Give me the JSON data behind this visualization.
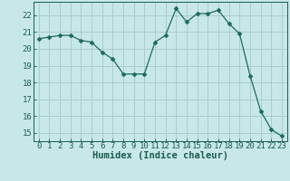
{
  "x": [
    0,
    1,
    2,
    3,
    4,
    5,
    6,
    7,
    8,
    9,
    10,
    11,
    12,
    13,
    14,
    15,
    16,
    17,
    18,
    19,
    20,
    21,
    22,
    23
  ],
  "y": [
    20.6,
    20.7,
    20.8,
    20.8,
    20.5,
    20.4,
    19.8,
    19.4,
    18.5,
    18.5,
    18.5,
    20.4,
    20.8,
    22.4,
    21.6,
    22.1,
    22.1,
    22.3,
    21.5,
    20.9,
    18.4,
    16.3,
    15.2,
    14.8
  ],
  "line_color": "#1a6b5a",
  "marker": "D",
  "marker_size": 2.5,
  "background_color": "#c8e8e8",
  "grid_color": "#aacece",
  "xlabel": "Humidex (Indice chaleur)",
  "ylim": [
    14.5,
    22.8
  ],
  "xlim": [
    -0.5,
    23.5
  ],
  "yticks": [
    15,
    16,
    17,
    18,
    19,
    20,
    21,
    22
  ],
  "xticks": [
    0,
    1,
    2,
    3,
    4,
    5,
    6,
    7,
    8,
    9,
    10,
    11,
    12,
    13,
    14,
    15,
    16,
    17,
    18,
    19,
    20,
    21,
    22,
    23
  ],
  "tick_color": "#1a5c4e",
  "tick_fontsize": 6.5,
  "xlabel_fontsize": 7.5
}
